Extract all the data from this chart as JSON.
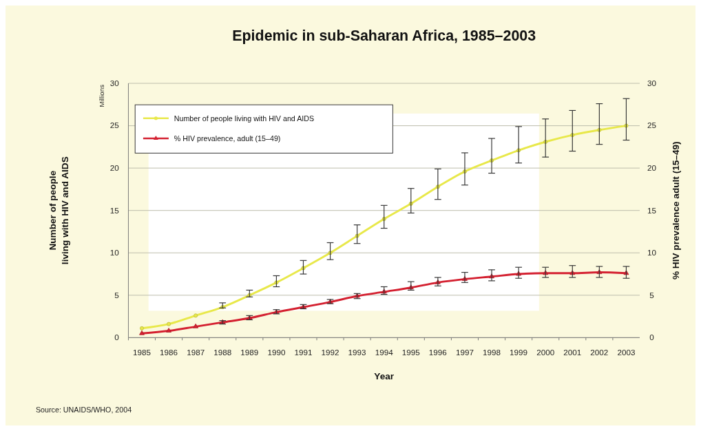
{
  "chart_data": {
    "type": "line",
    "title": "Epidemic in sub-Saharan Africa, 1985–2003",
    "xlabel": "Year",
    "ylabel": "Number of people\nliving with HIV and AIDS",
    "y2label": "% HIV prevalence adult (15–49)",
    "annotations": [
      "Millions",
      "Source: UNAIDS/WHO, 2004"
    ],
    "categories": [
      "1985",
      "1986",
      "1987",
      "1988",
      "1989",
      "1990",
      "1991",
      "1992",
      "1993",
      "1994",
      "1995",
      "1996",
      "1997",
      "1998",
      "1999",
      "2000",
      "2001",
      "2002",
      "2003"
    ],
    "series": [
      {
        "name": "Number of people living with HIV and AIDS",
        "color": "#e8e84a",
        "marker": "circle",
        "values": [
          1.1,
          1.6,
          2.6,
          3.6,
          5.0,
          6.5,
          8.2,
          10.0,
          12.0,
          14.0,
          15.8,
          17.8,
          19.6,
          20.9,
          22.1,
          23.1,
          23.9,
          24.5,
          25.0
        ],
        "errors": [
          null,
          null,
          null,
          [
            3.5,
            4.1
          ],
          [
            4.8,
            5.6
          ],
          [
            6.0,
            7.3
          ],
          [
            7.5,
            9.1
          ],
          [
            9.2,
            11.2
          ],
          [
            11.1,
            13.3
          ],
          [
            12.9,
            15.6
          ],
          [
            14.7,
            17.6
          ],
          [
            16.3,
            19.9
          ],
          [
            18.0,
            21.8
          ],
          [
            19.4,
            23.5
          ],
          [
            20.6,
            24.9
          ],
          [
            21.3,
            25.8
          ],
          [
            22.0,
            26.8
          ],
          [
            22.8,
            27.6
          ],
          [
            23.3,
            28.2
          ]
        ]
      },
      {
        "name": "% HIV prevalence, adult (15–49)",
        "color": "#d42030",
        "marker": "triangle",
        "axis": "y2",
        "values": [
          0.5,
          0.8,
          1.3,
          1.8,
          2.3,
          3.0,
          3.6,
          4.2,
          4.9,
          5.4,
          5.9,
          6.5,
          6.9,
          7.2,
          7.5,
          7.6,
          7.6,
          7.7,
          7.6
        ],
        "errors": [
          null,
          null,
          null,
          [
            1.6,
            2.0
          ],
          [
            2.1,
            2.6
          ],
          [
            2.8,
            3.3
          ],
          [
            3.4,
            3.9
          ],
          [
            4.0,
            4.5
          ],
          [
            4.6,
            5.2
          ],
          [
            5.1,
            6.0
          ],
          [
            5.6,
            6.6
          ],
          [
            6.1,
            7.1
          ],
          [
            6.5,
            7.7
          ],
          [
            6.7,
            8.0
          ],
          [
            7.0,
            8.3
          ],
          [
            7.1,
            8.3
          ],
          [
            7.1,
            8.5
          ],
          [
            7.1,
            8.4
          ],
          [
            7.0,
            8.4
          ]
        ]
      }
    ],
    "ylim": [
      0,
      30
    ],
    "yticks": [
      0,
      5,
      10,
      15,
      20,
      25,
      30
    ],
    "y2lim": [
      0,
      30
    ],
    "y2ticks": [
      0,
      5,
      10,
      15,
      20,
      25,
      30
    ],
    "grid": "y",
    "legend": "top left",
    "line_style": "solid"
  }
}
